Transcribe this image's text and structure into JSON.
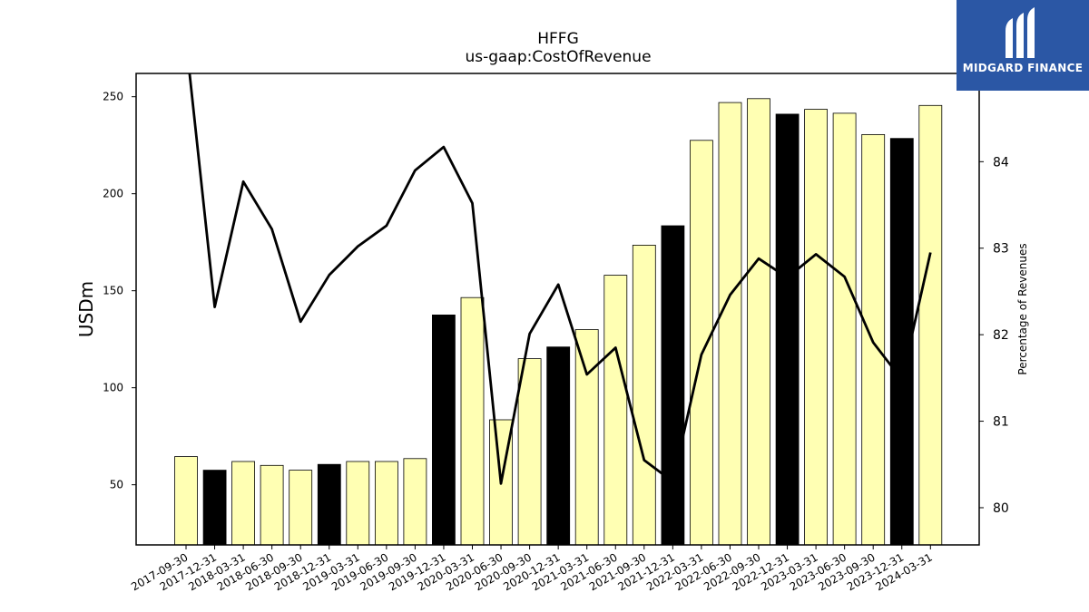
{
  "chart_data": {
    "type": "bar",
    "title": "HFFG",
    "subtitle": "us-gaap:CostOfRevenue",
    "ylabel": "USDm",
    "y2label": "Percentage of Revenues",
    "ylim": [
      19,
      262
    ],
    "y2lim": [
      79.57,
      85.02
    ],
    "yticks": [
      50,
      100,
      150,
      200,
      250
    ],
    "y2ticks": [
      80,
      81,
      82,
      83,
      84
    ],
    "categories": [
      "2017-09-30",
      "2017-12-31",
      "2018-03-31",
      "2018-06-30",
      "2018-09-30",
      "2018-12-31",
      "2019-03-31",
      "2019-06-30",
      "2019-09-30",
      "2019-12-31",
      "2020-03-31",
      "2020-06-30",
      "2020-09-30",
      "2020-12-31",
      "2021-03-31",
      "2021-06-30",
      "2021-09-30",
      "2021-12-31",
      "2022-03-31",
      "2022-06-30",
      "2022-09-30",
      "2022-12-31",
      "2023-03-31",
      "2023-06-30",
      "2023-09-30",
      "2023-12-31",
      "2024-03-31"
    ],
    "series": [
      {
        "kind": "bar",
        "values": [
          64.5,
          57.5,
          62,
          60,
          57.5,
          60.5,
          62,
          62,
          63.5,
          137.5,
          146.5,
          83.5,
          115,
          121,
          130,
          158,
          173.5,
          183.5,
          227.5,
          247,
          249,
          241,
          243.5,
          241.5,
          230.5,
          228.5,
          245.5
        ],
        "year_end": [
          false,
          true,
          false,
          false,
          false,
          true,
          false,
          false,
          false,
          true,
          false,
          false,
          false,
          true,
          false,
          false,
          false,
          true,
          false,
          false,
          false,
          true,
          false,
          false,
          false,
          true,
          false
        ]
      },
      {
        "kind": "line",
        "values": [
          85.4,
          82.32,
          83.77,
          83.22,
          82.15,
          82.69,
          83.02,
          83.26,
          83.9,
          84.17,
          83.52,
          80.28,
          82.01,
          82.58,
          81.54,
          81.85,
          80.55,
          80.3,
          81.77,
          82.46,
          82.88,
          82.66,
          82.93,
          82.67,
          81.91,
          81.48,
          82.95
        ]
      }
    ],
    "colors": {
      "bar_regular": "#ffffb3",
      "bar_year_end": "#000000",
      "bar_edge": "#000000",
      "line": "#000000"
    },
    "grid": false
  },
  "logo": {
    "text": "MIDGARD FINANCE",
    "color": "#2b57a5"
  }
}
